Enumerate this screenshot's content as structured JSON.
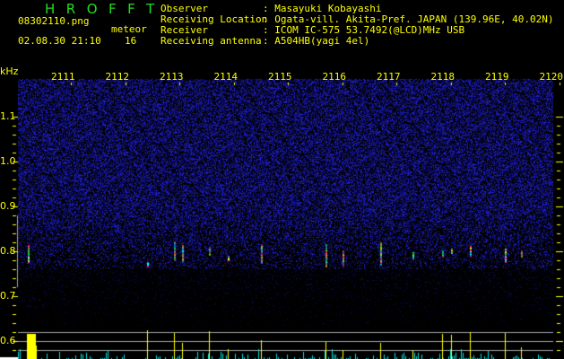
{
  "header": {
    "title": "HROFFT",
    "filename": "08302110.png",
    "datetime": "02.08.30 21:10",
    "meteor_label": "meteor",
    "meteor_count": "16",
    "info": [
      {
        "label": "Observer",
        "value": ": Masayuki Kobayashi"
      },
      {
        "label": "Receiving Location",
        "value": ": Ogata-vill. Akita-Pref. JAPAN (139.96E, 40.02N)"
      },
      {
        "label": "Receiver",
        "value": ": ICOM IC-575 53.7492(@LCD)MHz USB"
      },
      {
        "label": "Receiving antenna",
        "value": ": A504HB(yagi 4el)"
      }
    ]
  },
  "spectrogram": {
    "y_unit": "kHz",
    "y_ticks": [
      "1.1",
      "1.0",
      "0.9",
      "0.8",
      "0.7",
      "0.6"
    ],
    "time_ticks": [
      "2111",
      "2112",
      "2113",
      "2114",
      "2115",
      "2116",
      "2117",
      "2118",
      "2119",
      "2120"
    ],
    "colors": {
      "axis_text": "#ffff00",
      "title": "#22dd22",
      "noise": "#2020c0",
      "count_bar": "#00e0e0",
      "meteor_bar": "#ffff00",
      "guide_line": "#a0a0a0"
    },
    "echoes": [
      {
        "time": 2110.2,
        "freq_khz": 0.795
      },
      {
        "time": 2112.4,
        "freq_khz": 0.77
      },
      {
        "time": 2112.9,
        "freq_khz": 0.8
      },
      {
        "time": 2113.05,
        "freq_khz": 0.795
      },
      {
        "time": 2113.55,
        "freq_khz": 0.8
      },
      {
        "time": 2113.9,
        "freq_khz": 0.785
      },
      {
        "time": 2114.5,
        "freq_khz": 0.795
      },
      {
        "time": 2115.7,
        "freq_khz": 0.79
      },
      {
        "time": 2116.0,
        "freq_khz": 0.785
      },
      {
        "time": 2116.7,
        "freq_khz": 0.795
      },
      {
        "time": 2117.3,
        "freq_khz": 0.79
      },
      {
        "time": 2117.85,
        "freq_khz": 0.795
      },
      {
        "time": 2118.0,
        "freq_khz": 0.8
      },
      {
        "time": 2118.35,
        "freq_khz": 0.8
      },
      {
        "time": 2119.0,
        "freq_khz": 0.79
      },
      {
        "time": 2119.3,
        "freq_khz": 0.795
      }
    ]
  }
}
